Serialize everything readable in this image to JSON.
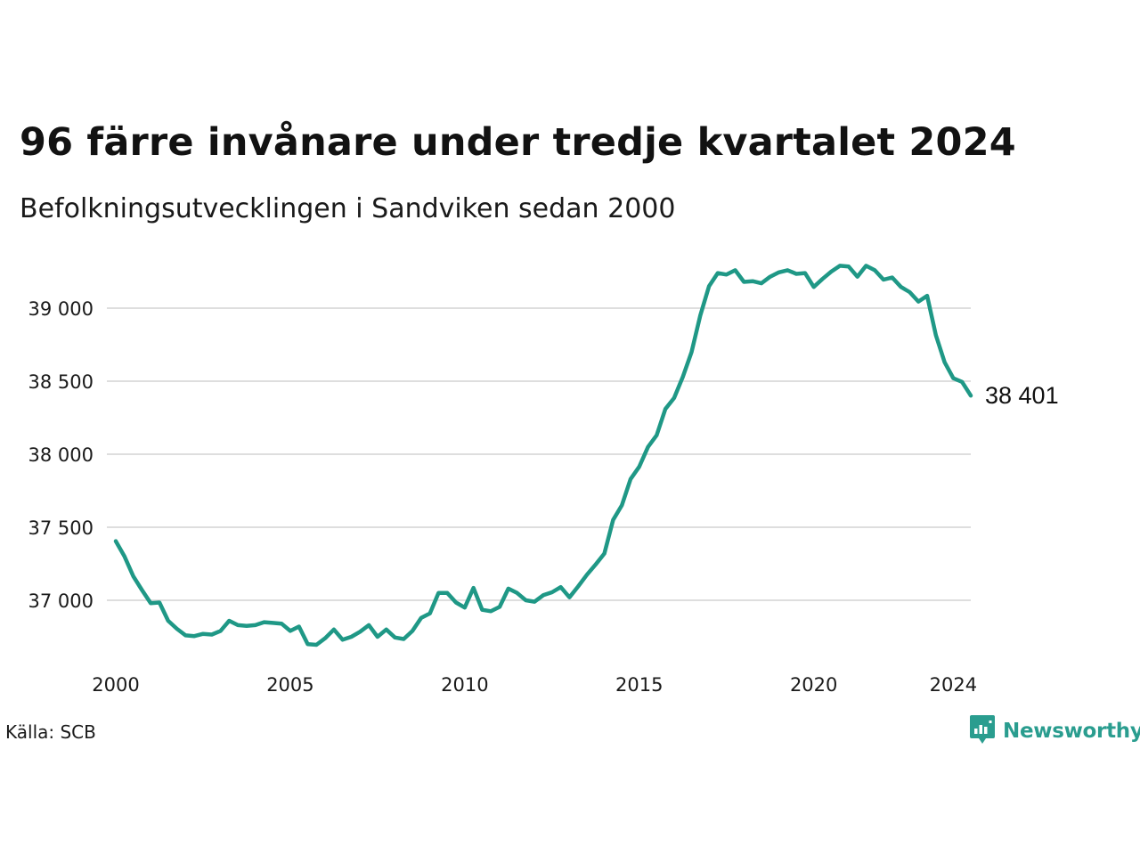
{
  "title": "96 färre invånare under tredje kvartalet 2024",
  "subtitle": "Befolkningsutvecklingen i Sandviken sedan 2000",
  "source": "Källa: SCB",
  "brand": {
    "name": "Newsworthy",
    "icon": "newsworthy-logo-icon",
    "color": "#2a9d8f"
  },
  "chart_data": {
    "type": "line",
    "line_color": "#1f9886",
    "grid": true,
    "grid_color": "#dedede",
    "ylim": [
      36650,
      39300
    ],
    "xlim": [
      2000,
      2024.75
    ],
    "yticks": [
      37000,
      37500,
      38000,
      38500,
      39000
    ],
    "ytick_labels": [
      "37 000",
      "37 500",
      "38 000",
      "38 500",
      "39 000"
    ],
    "xticks": [
      2000,
      2005,
      2010,
      2015,
      2020,
      2024
    ],
    "xtick_labels": [
      "2000",
      "2005",
      "2010",
      "2015",
      "2020",
      "2024"
    ],
    "end_label": "38 401",
    "x": [
      2000.0,
      2000.25,
      2000.5,
      2000.75,
      2001.0,
      2001.25,
      2001.5,
      2001.75,
      2002.0,
      2002.25,
      2002.5,
      2002.75,
      2003.0,
      2003.25,
      2003.5,
      2003.75,
      2004.0,
      2004.25,
      2004.5,
      2004.75,
      2005.0,
      2005.25,
      2005.5,
      2005.75,
      2006.0,
      2006.25,
      2006.5,
      2006.75,
      2007.0,
      2007.25,
      2007.5,
      2007.75,
      2008.0,
      2008.25,
      2008.5,
      2008.75,
      2009.0,
      2009.25,
      2009.5,
      2009.75,
      2010.0,
      2010.25,
      2010.5,
      2010.75,
      2011.0,
      2011.25,
      2011.5,
      2011.75,
      2012.0,
      2012.25,
      2012.5,
      2012.75,
      2013.0,
      2013.25,
      2013.5,
      2013.75,
      2014.0,
      2014.25,
      2014.5,
      2014.75,
      2015.0,
      2015.25,
      2015.5,
      2015.75,
      2016.0,
      2016.25,
      2016.5,
      2016.75,
      2017.0,
      2017.25,
      2017.5,
      2017.75,
      2018.0,
      2018.25,
      2018.5,
      2018.75,
      2019.0,
      2019.25,
      2019.5,
      2019.75,
      2020.0,
      2020.25,
      2020.5,
      2020.75,
      2021.0,
      2021.25,
      2021.5,
      2021.75,
      2022.0,
      2022.25,
      2022.5,
      2022.75,
      2023.0,
      2023.25,
      2023.5,
      2023.75,
      2024.0,
      2024.25,
      2024.5
    ],
    "y": [
      37405,
      37300,
      37165,
      37070,
      36980,
      36985,
      36860,
      36805,
      36760,
      36755,
      36770,
      36765,
      36790,
      36860,
      36830,
      36825,
      36830,
      36850,
      36845,
      36840,
      36790,
      36820,
      36700,
      36695,
      36740,
      36800,
      36730,
      36750,
      36785,
      36830,
      36750,
      36800,
      36745,
      36735,
      36790,
      36880,
      36910,
      37050,
      37050,
      36985,
      36950,
      37085,
      36935,
      36925,
      36955,
      37080,
      37050,
      37000,
      36990,
      37035,
      37055,
      37090,
      37020,
      37095,
      37175,
      37245,
      37320,
      37550,
      37650,
      37830,
      37915,
      38050,
      38130,
      38310,
      38385,
      38530,
      38700,
      38950,
      39150,
      39240,
      39230,
      39260,
      39180,
      39185,
      39170,
      39215,
      39245,
      39260,
      39235,
      39240,
      39145,
      39200,
      39250,
      39290,
      39285,
      39215,
      39290,
      39260,
      39195,
      39210,
      39145,
      39110,
      39045,
      39085,
      38815,
      38630,
      38520,
      38495,
      38401
    ]
  }
}
